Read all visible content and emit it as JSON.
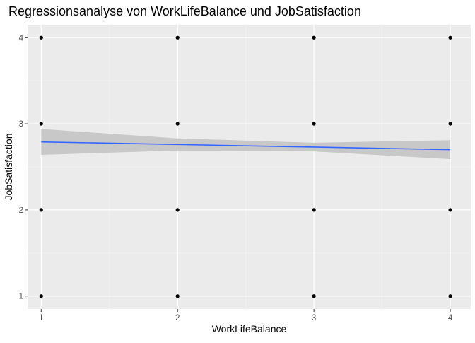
{
  "chart_data": {
    "type": "scatter",
    "title": "Regressionsanalyse von WorkLifeBalance und JobSatisfaction",
    "xlabel": "WorkLifeBalance",
    "ylabel": "JobSatisfaction",
    "xlim": [
      0.9,
      4.15
    ],
    "ylim": [
      0.85,
      4.15
    ],
    "xticks": [
      1,
      2,
      3,
      4
    ],
    "yticks": [
      1,
      2,
      3,
      4
    ],
    "x_tick_labels": [
      "1",
      "2",
      "3",
      "4"
    ],
    "y_tick_labels": [
      "1",
      "2",
      "3",
      "4"
    ],
    "grid": true,
    "legend": "none",
    "points": [
      {
        "x": 1,
        "y": 1
      },
      {
        "x": 1,
        "y": 2
      },
      {
        "x": 1,
        "y": 3
      },
      {
        "x": 1,
        "y": 4
      },
      {
        "x": 2,
        "y": 1
      },
      {
        "x": 2,
        "y": 2
      },
      {
        "x": 2,
        "y": 3
      },
      {
        "x": 2,
        "y": 4
      },
      {
        "x": 3,
        "y": 1
      },
      {
        "x": 3,
        "y": 2
      },
      {
        "x": 3,
        "y": 3
      },
      {
        "x": 3,
        "y": 4
      },
      {
        "x": 4,
        "y": 1
      },
      {
        "x": 4,
        "y": 2
      },
      {
        "x": 4,
        "y": 3
      },
      {
        "x": 4,
        "y": 4
      }
    ],
    "regression": {
      "method": "linear",
      "x": [
        1,
        2,
        3,
        4
      ],
      "fit": [
        2.79,
        2.76,
        2.73,
        2.7
      ],
      "ci_lower": [
        2.64,
        2.69,
        2.68,
        2.59
      ],
      "ci_upper": [
        2.94,
        2.83,
        2.78,
        2.81
      ]
    },
    "colors": {
      "panel_background": "#ebebeb",
      "grid_major": "#ffffff",
      "grid_minor": "#f5f5f5",
      "point": "#000000",
      "fit_line": "#3366ff",
      "confidence_band": "#c8c8c8"
    }
  }
}
